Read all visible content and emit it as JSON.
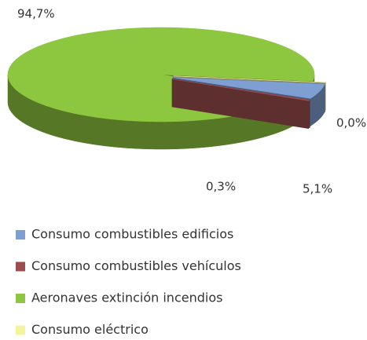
{
  "chart_data": {
    "type": "pie3d",
    "categories": [
      "Consumo combustibles edificios",
      "Consumo combustibles vehículos",
      "Aeronaves extinción incendios",
      "Consumo eléctrico"
    ],
    "values": [
      5.1,
      0.3,
      94.7,
      0.0
    ],
    "value_labels": [
      "5,1%",
      "0,3%",
      "94,7%",
      "0,0%"
    ],
    "colors": [
      "#7f9fd3",
      "#9c4e4e",
      "#8dc63f",
      "#f4f49a"
    ],
    "legend": "bottom"
  }
}
